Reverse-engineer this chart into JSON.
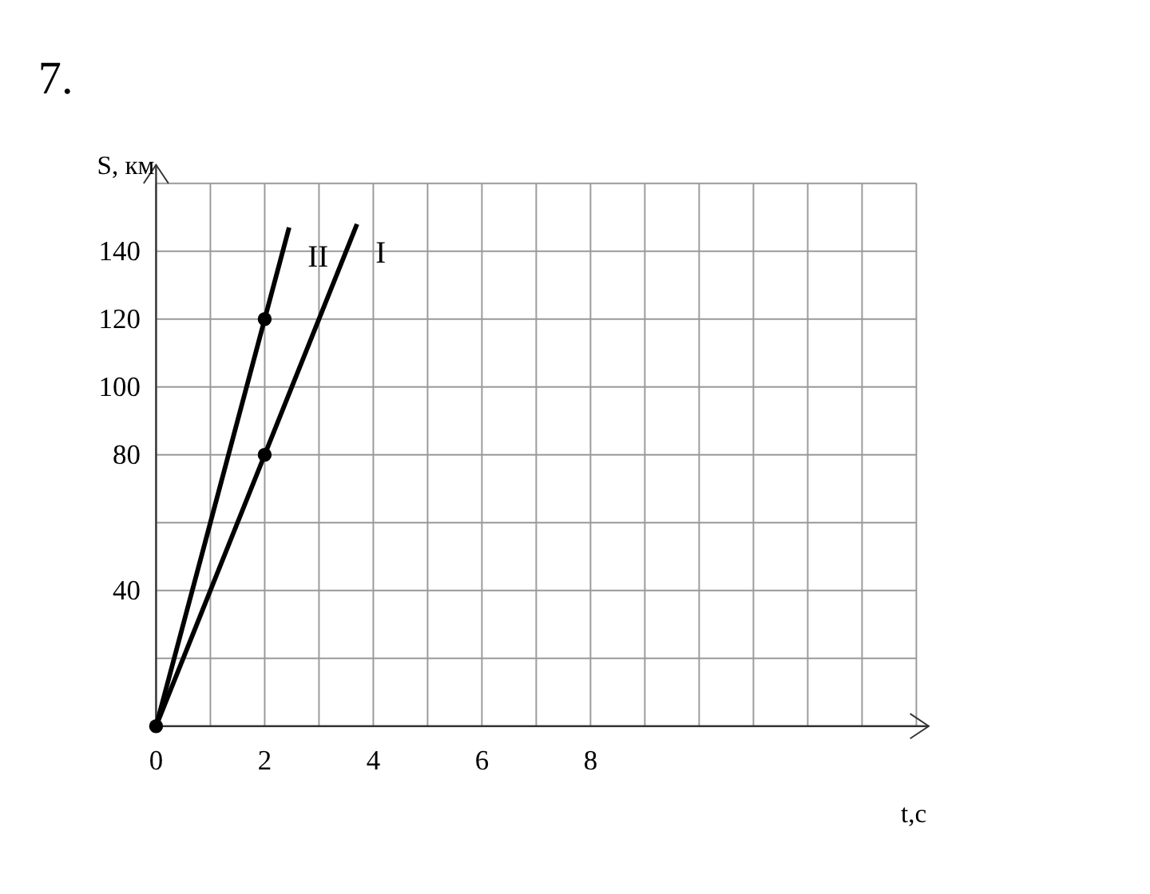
{
  "chart_data": {
    "type": "line",
    "xlabel": "t,c",
    "ylabel": "S, км",
    "annotations": [
      "7."
    ],
    "xlim": [
      0,
      14
    ],
    "ylim": [
      0,
      160
    ],
    "xticks": [
      0,
      {
        "value": 1,
        "label": null
      },
      2,
      {
        "value": 3,
        "label": null
      },
      4,
      {
        "value": 5,
        "label": null
      },
      6,
      {
        "value": 7,
        "label": null
      },
      8,
      {
        "value": 9,
        "label": null
      },
      {
        "value": 10,
        "label": null
      },
      {
        "value": 11,
        "label": null
      },
      {
        "value": 12,
        "label": null
      },
      {
        "value": 13,
        "label": null
      },
      {
        "value": 14,
        "label": null
      }
    ],
    "yticks": [
      {
        "value": 20,
        "label": null
      },
      40,
      {
        "value": 60,
        "label": null
      },
      80,
      100,
      120,
      140,
      {
        "value": 160,
        "label": null
      }
    ],
    "grid": true,
    "marker": "none",
    "series": [
      {
        "name": "II",
        "color": "#000000",
        "x": [
          0,
          2,
          2.45
        ],
        "values": [
          0,
          120,
          147
        ]
      },
      {
        "name": "I",
        "color": "#000000",
        "x": [
          0,
          2,
          3.7
        ],
        "values": [
          0,
          80,
          148
        ]
      },
      {
        "type": "scatter",
        "color": "#000000",
        "x": [
          0,
          2,
          2
        ],
        "values": [
          0,
          80,
          120
        ],
        "marker": "circle"
      }
    ]
  }
}
